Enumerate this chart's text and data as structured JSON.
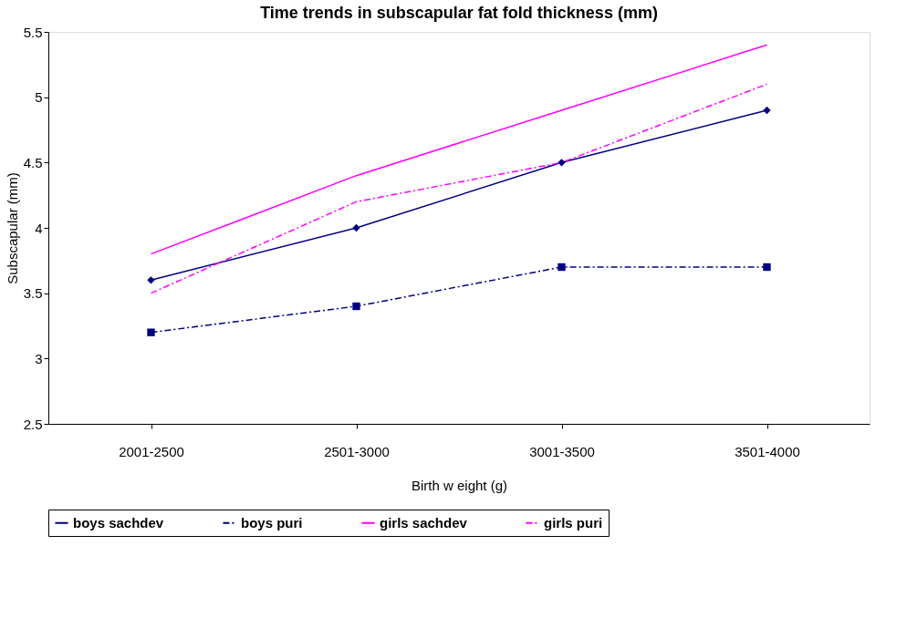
{
  "chart_data": {
    "type": "line",
    "title": "Time trends in subscapular fat fold thickness (mm)",
    "xlabel": "Birth w eight (g)",
    "ylabel": "Subscapular (mm)",
    "categories": [
      "2001-2500",
      "2501-3000",
      "3001-3500",
      "3501-4000"
    ],
    "ylim": [
      2.5,
      5.5
    ],
    "yticks": [
      2.5,
      3,
      3.5,
      4,
      4.5,
      5,
      5.5
    ],
    "grid": false,
    "legend": "bottom",
    "series": [
      {
        "name": "boys sachdev",
        "color": "#000080",
        "values": [
          3.6,
          4.0,
          4.5,
          4.9
        ],
        "marker": "diamond",
        "line_style": "solid"
      },
      {
        "name": "boys puri",
        "color": "#000080",
        "values": [
          3.2,
          3.4,
          3.7,
          3.7
        ],
        "marker": "square",
        "line_style": "dashdot"
      },
      {
        "name": "girls sachdev",
        "color": "#ff00ff",
        "values": [
          3.8,
          4.4,
          4.9,
          5.4
        ],
        "marker": "none",
        "line_style": "solid"
      },
      {
        "name": "girls puri",
        "color": "#ff00ff",
        "values": [
          3.5,
          4.2,
          4.5,
          5.1
        ],
        "marker": "none",
        "line_style": "dashdot"
      }
    ]
  }
}
